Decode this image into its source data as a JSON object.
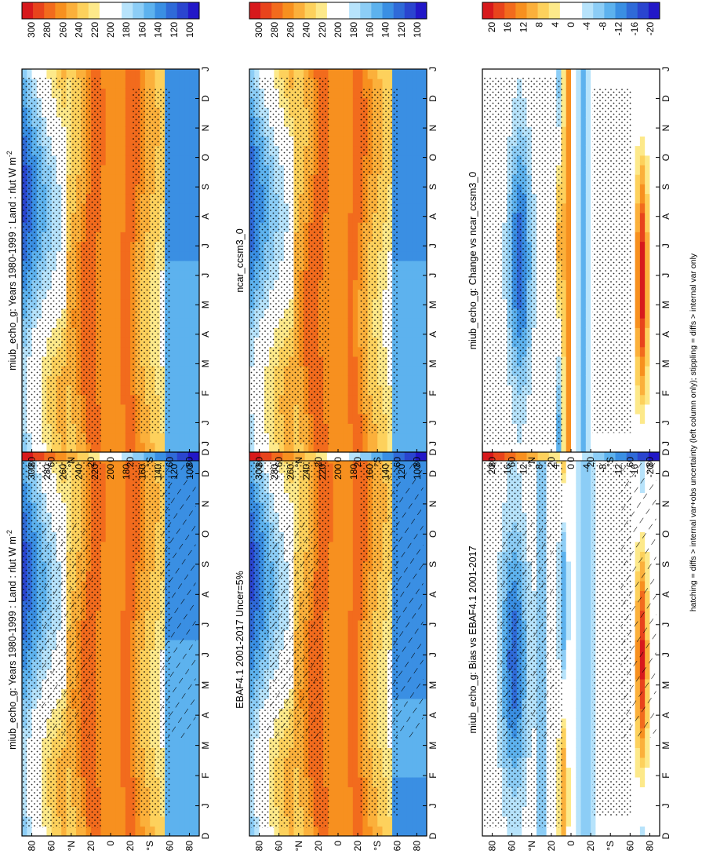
{
  "figure": {
    "footer": "hatching = diffs > internal var+obs uncertainty (left column only); stippling = diffs > internal var only"
  },
  "palettes": {
    "abs": [
      "#d7191c",
      "#e8441c",
      "#f26b1d",
      "#f7901f",
      "#fbb03b",
      "#fdd15c",
      "#fde98a",
      "#ffffff",
      "#ffffff",
      "#b7e3fb",
      "#8ccdf6",
      "#5db2ee",
      "#3a8fe3",
      "#2f6ad8",
      "#2a45cf",
      "#2218c8"
    ],
    "diff": [
      "#d7191c",
      "#e8441c",
      "#f26b1d",
      "#f7901f",
      "#fbb03b",
      "#fdd15c",
      "#fde98a",
      "#ffffff",
      "#ffffff",
      "#b7e3fb",
      "#8ccdf6",
      "#5db2ee",
      "#3a8fe3",
      "#2f6ad8",
      "#2a45cf",
      "#2218c8"
    ]
  },
  "chart_data": [
    {
      "id": "model-left",
      "type": "heatmap",
      "title": "miub_echo_g: Years 1980-1999 : Land : rlut W m",
      "title_sup": "-2",
      "x_months": [
        "D",
        "J",
        "F",
        "M",
        "A",
        "M",
        "J",
        "J",
        "A",
        "S",
        "O",
        "N",
        "D",
        "J"
      ],
      "y_ticks": [
        "80",
        "60",
        "°N",
        "20",
        "0",
        "20",
        "°S",
        "60",
        "80"
      ],
      "y_range": [
        90,
        -90
      ],
      "colorbar_labels": [
        "300",
        "280",
        "260",
        "240",
        "220",
        "200",
        "180",
        "160",
        "140",
        "120",
        "100"
      ],
      "palette": "abs",
      "field": "abs",
      "variant": 0,
      "hatched": true
    },
    {
      "id": "model-right",
      "type": "heatmap",
      "title": "miub_echo_g: Years 1980-1999 : Land : rlut W m",
      "title_sup": "-2",
      "x_months": [
        "D",
        "J",
        "F",
        "M",
        "A",
        "M",
        "J",
        "J",
        "A",
        "S",
        "O",
        "N",
        "D",
        "J"
      ],
      "y_ticks": [
        "80",
        "60",
        "°N",
        "20",
        "0",
        "20",
        "°S",
        "60",
        "80"
      ],
      "y_range": [
        90,
        -90
      ],
      "colorbar_labels": [
        "300",
        "280",
        "260",
        "240",
        "220",
        "200",
        "180",
        "160",
        "140",
        "120",
        "100"
      ],
      "palette": "abs",
      "field": "abs",
      "variant": 0,
      "hatched": false
    },
    {
      "id": "obs",
      "type": "heatmap",
      "title": "EBAF4.1 2001-2017 Uncer=5%",
      "title_sup": "",
      "x_months": [
        "D",
        "J",
        "F",
        "M",
        "A",
        "M",
        "J",
        "J",
        "A",
        "S",
        "O",
        "N",
        "D",
        "J"
      ],
      "y_ticks": [
        "80",
        "60",
        "°N",
        "20",
        "0",
        "20",
        "°S",
        "60",
        "80"
      ],
      "y_range": [
        90,
        -90
      ],
      "colorbar_labels": [
        "300",
        "280",
        "260",
        "240",
        "220",
        "200",
        "180",
        "160",
        "140",
        "120",
        "100"
      ],
      "palette": "abs",
      "field": "abs",
      "variant": 1,
      "hatched": true
    },
    {
      "id": "ref-model",
      "type": "heatmap",
      "title": "ncar_ccsm3_0",
      "title_sup": "",
      "x_months": [
        "D",
        "J",
        "F",
        "M",
        "A",
        "M",
        "J",
        "J",
        "A",
        "S",
        "O",
        "N",
        "D",
        "J"
      ],
      "y_ticks": [
        "80",
        "60",
        "°N",
        "20",
        "0",
        "20",
        "°S",
        "60",
        "80"
      ],
      "y_range": [
        90,
        -90
      ],
      "colorbar_labels": [
        "300",
        "280",
        "260",
        "240",
        "220",
        "200",
        "180",
        "160",
        "140",
        "120",
        "100"
      ],
      "palette": "abs",
      "field": "abs",
      "variant": 2,
      "hatched": false
    },
    {
      "id": "bias",
      "type": "heatmap",
      "title": "miub_echo_g: Bias vs EBAF4.1 2001-2017",
      "title_sup": "",
      "x_months": [
        "D",
        "J",
        "F",
        "M",
        "A",
        "M",
        "J",
        "J",
        "A",
        "S",
        "O",
        "N",
        "D",
        "J"
      ],
      "y_ticks": [
        "80",
        "60",
        "°N",
        "20",
        "0",
        "20",
        "°S",
        "60",
        "80"
      ],
      "y_range": [
        90,
        -90
      ],
      "colorbar_labels": [
        "20",
        "16",
        "12",
        "8",
        "4",
        "0",
        "-4",
        "-8",
        "-12",
        "-16",
        "-20"
      ],
      "palette": "diff",
      "field": "bias",
      "variant": 0,
      "hatched": true
    },
    {
      "id": "change",
      "type": "heatmap",
      "title": "miub_echo_g: Change vs ncar_ccsm3_0",
      "title_sup": "",
      "x_months": [
        "D",
        "J",
        "F",
        "M",
        "A",
        "M",
        "J",
        "J",
        "A",
        "S",
        "O",
        "N",
        "D",
        "J"
      ],
      "y_ticks": [
        "80",
        "60",
        "°N",
        "20",
        "0",
        "20",
        "°S",
        "60",
        "80"
      ],
      "y_range": [
        90,
        -90
      ],
      "colorbar_labels": [
        "20",
        "16",
        "12",
        "8",
        "4",
        "0",
        "-4",
        "-8",
        "-12",
        "-16",
        "-20"
      ],
      "palette": "diff",
      "field": "change",
      "variant": 0,
      "hatched": false
    }
  ]
}
